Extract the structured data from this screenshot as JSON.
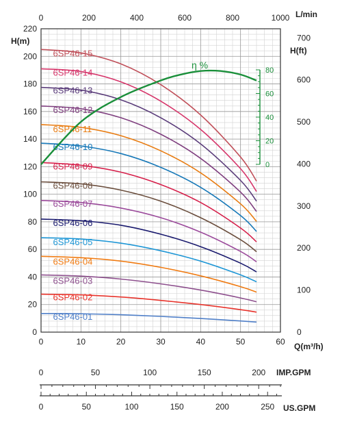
{
  "chart_data": {
    "type": "line",
    "x_axis_bottom": {
      "unit": "Q(m³/h)",
      "range": [
        0,
        60
      ],
      "ticks": [
        "0",
        "10",
        "20",
        "30",
        "40",
        "50",
        "60"
      ]
    },
    "x_axis_top": {
      "unit": "L/min",
      "range": [
        0,
        1000
      ],
      "ticks": [
        "0",
        "200",
        "400",
        "600",
        "800",
        "1000"
      ]
    },
    "y_axis_left": {
      "unit": "H(m)",
      "range": [
        0,
        220
      ],
      "ticks": [
        "0",
        "20",
        "40",
        "60",
        "80",
        "100",
        "120",
        "140",
        "160",
        "180",
        "200",
        "220"
      ]
    },
    "y_axis_right": {
      "unit": "H(ft)",
      "range": [
        0,
        721.8
      ],
      "ticks": [
        "0",
        "100",
        "200",
        "300",
        "400",
        "500",
        "600",
        "700"
      ]
    },
    "efficiency_axis": {
      "label": "η %",
      "range": [
        0,
        80
      ],
      "ticks": [
        "0",
        "20",
        "40",
        "60",
        "80"
      ],
      "color": "#1a8f3a"
    },
    "grid": true,
    "series": [
      {
        "name": "6SP46-01",
        "color": "#4f7fc8",
        "label_y": 9,
        "points": [
          [
            0,
            13.5
          ],
          [
            10,
            13.3
          ],
          [
            20,
            12.6
          ],
          [
            30,
            11.4
          ],
          [
            40,
            9.9
          ],
          [
            50,
            8.1
          ],
          [
            54,
            7.3
          ]
        ]
      },
      {
        "name": "6SP46-02",
        "color": "#e8332b",
        "label_y": 23,
        "points": [
          [
            0,
            27.5
          ],
          [
            10,
            27
          ],
          [
            20,
            25.5
          ],
          [
            30,
            23
          ],
          [
            40,
            20
          ],
          [
            50,
            16.3
          ],
          [
            54,
            14.5
          ]
        ]
      },
      {
        "name": "6SP46-03",
        "color": "#8d4f8d",
        "label_y": 35,
        "points": [
          [
            0,
            41.5
          ],
          [
            10,
            40.6
          ],
          [
            20,
            38.5
          ],
          [
            30,
            35
          ],
          [
            40,
            30.5
          ],
          [
            50,
            24.8
          ],
          [
            54,
            22
          ]
        ]
      },
      {
        "name": "6SP46-04",
        "color": "#f07b12",
        "label_y": 49,
        "points": [
          [
            0,
            55
          ],
          [
            10,
            54
          ],
          [
            20,
            51.5
          ],
          [
            30,
            47
          ],
          [
            40,
            40.8
          ],
          [
            50,
            33
          ],
          [
            54,
            29
          ]
        ]
      },
      {
        "name": "6SP46-05",
        "color": "#1f97d6",
        "label_y": 63,
        "points": [
          [
            0,
            68.5
          ],
          [
            10,
            67.5
          ],
          [
            20,
            64.5
          ],
          [
            30,
            59
          ],
          [
            40,
            51.5
          ],
          [
            50,
            41.5
          ],
          [
            54,
            36.5
          ]
        ]
      },
      {
        "name": "6SP46-06",
        "color": "#1a1a6e",
        "label_y": 77,
        "points": [
          [
            0,
            82
          ],
          [
            10,
            80.8
          ],
          [
            20,
            77.5
          ],
          [
            30,
            71
          ],
          [
            40,
            62
          ],
          [
            50,
            50
          ],
          [
            54,
            43.7
          ]
        ]
      },
      {
        "name": "6SP46-07",
        "color": "#9b4a9b",
        "label_y": 91,
        "points": [
          [
            0,
            95.5
          ],
          [
            10,
            94
          ],
          [
            20,
            90
          ],
          [
            30,
            83
          ],
          [
            40,
            72.5
          ],
          [
            50,
            58.5
          ],
          [
            54,
            51
          ]
        ]
      },
      {
        "name": "6SP46-08",
        "color": "#6b4e3d",
        "label_y": 104,
        "points": [
          [
            0,
            109
          ],
          [
            10,
            107.5
          ],
          [
            20,
            103
          ],
          [
            30,
            95
          ],
          [
            40,
            83
          ],
          [
            50,
            67
          ],
          [
            54,
            58.3
          ]
        ]
      },
      {
        "name": "6SP46-09",
        "color": "#d6204b",
        "label_y": 118,
        "points": [
          [
            0,
            123
          ],
          [
            10,
            121
          ],
          [
            20,
            116
          ],
          [
            30,
            107
          ],
          [
            40,
            94
          ],
          [
            50,
            75.5
          ],
          [
            54,
            65.5
          ]
        ]
      },
      {
        "name": "6SP46-10",
        "color": "#1678b8",
        "label_y": 132,
        "points": [
          [
            0,
            137
          ],
          [
            10,
            135
          ],
          [
            20,
            129.5
          ],
          [
            30,
            119.5
          ],
          [
            40,
            105
          ],
          [
            50,
            84.5
          ],
          [
            54,
            73
          ]
        ]
      },
      {
        "name": "6SP46-11",
        "color": "#e87b10",
        "label_y": 145,
        "points": [
          [
            0,
            150.5
          ],
          [
            10,
            148.5
          ],
          [
            20,
            142.5
          ],
          [
            30,
            131.5
          ],
          [
            40,
            115.5
          ],
          [
            50,
            93
          ],
          [
            54,
            80.3
          ]
        ]
      },
      {
        "name": "6SP46-12",
        "color": "#7f3f7f",
        "label_y": 159,
        "points": [
          [
            0,
            164
          ],
          [
            10,
            162
          ],
          [
            20,
            155.5
          ],
          [
            30,
            143.5
          ],
          [
            40,
            126
          ],
          [
            50,
            101.5
          ],
          [
            54,
            87.5
          ]
        ]
      },
      {
        "name": "6SP46-13",
        "color": "#5a3c7a",
        "label_y": 173,
        "points": [
          [
            0,
            177.5
          ],
          [
            10,
            175.5
          ],
          [
            20,
            168.5
          ],
          [
            30,
            155.5
          ],
          [
            40,
            136.5
          ],
          [
            50,
            110
          ],
          [
            54,
            95
          ]
        ]
      },
      {
        "name": "6SP46-14",
        "color": "#d6356a",
        "label_y": 186,
        "points": [
          [
            0,
            191
          ],
          [
            10,
            189
          ],
          [
            20,
            181.5
          ],
          [
            30,
            167.5
          ],
          [
            40,
            147
          ],
          [
            50,
            118.5
          ],
          [
            54,
            102
          ]
        ]
      },
      {
        "name": "6SP46-15",
        "color": "#c0505a",
        "label_y": 200,
        "points": [
          [
            0,
            205
          ],
          [
            10,
            202.5
          ],
          [
            20,
            194.5
          ],
          [
            30,
            179.5
          ],
          [
            40,
            157.5
          ],
          [
            50,
            127
          ],
          [
            54,
            109.5
          ]
        ]
      }
    ],
    "efficiency_curve": {
      "color": "#1a8f3a",
      "points": [
        [
          0,
          0
        ],
        [
          10,
          36
        ],
        [
          20,
          57
        ],
        [
          30,
          71
        ],
        [
          35,
          76
        ],
        [
          40,
          79
        ],
        [
          45,
          79
        ],
        [
          50,
          76
        ],
        [
          54,
          71
        ]
      ]
    },
    "imp_gpm": {
      "label": "IMP.GPM",
      "range": [
        0,
        220
      ],
      "ticks": [
        "0",
        "50",
        "100",
        "150",
        "200"
      ]
    },
    "us_gpm": {
      "label": "US.GPM",
      "range": [
        0,
        264.2
      ],
      "ticks": [
        "0",
        "50",
        "100",
        "150",
        "200",
        "250"
      ]
    }
  }
}
